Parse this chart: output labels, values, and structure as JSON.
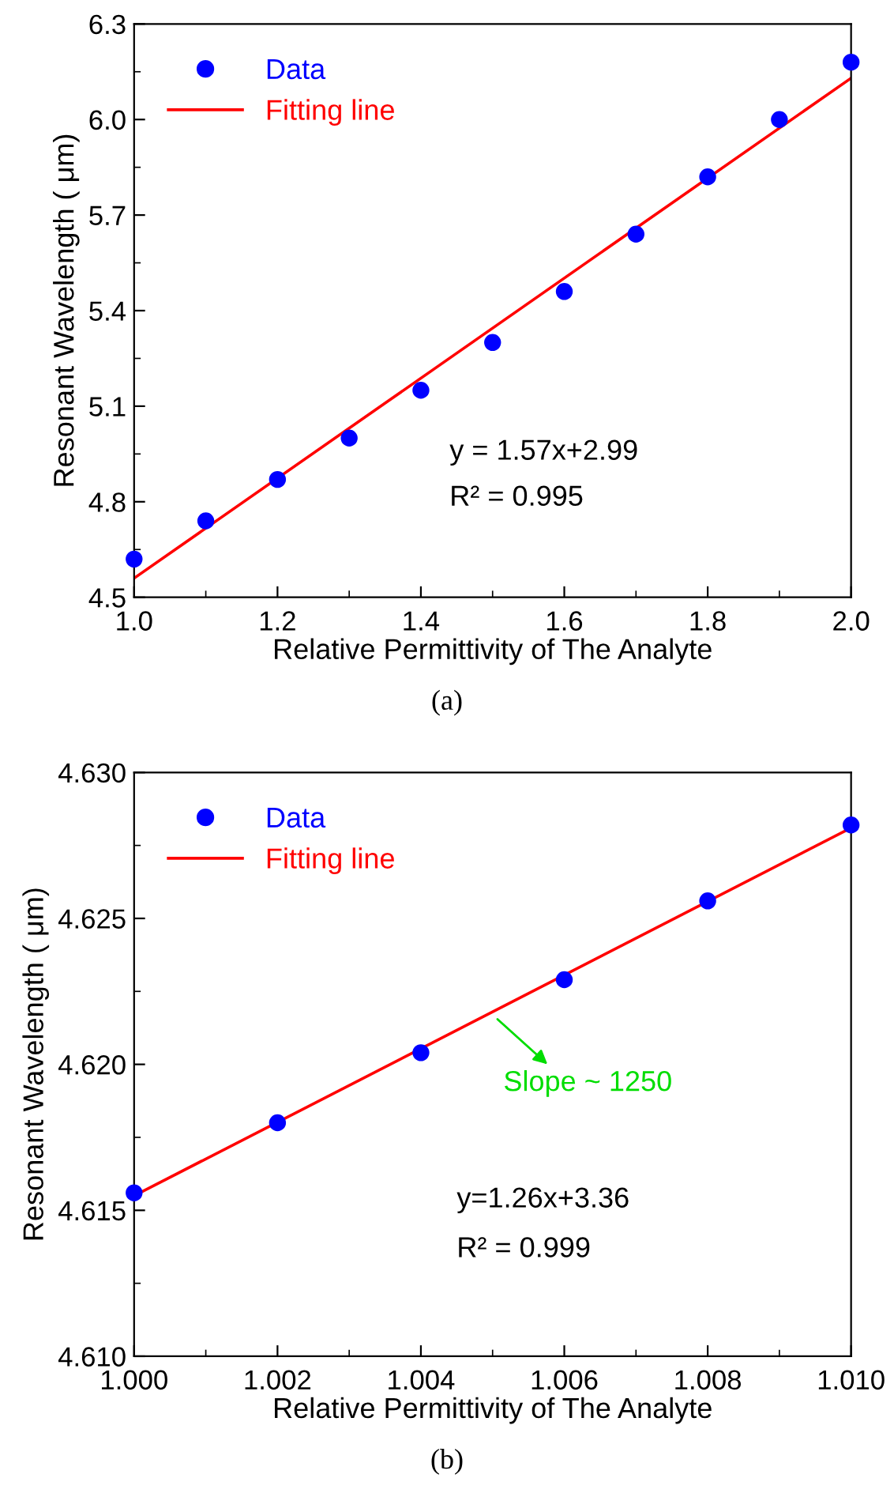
{
  "chart_data": [
    {
      "type": "scatter",
      "xlabel": "Relative Permittivity of The Analyte",
      "ylabel": "Resonant Wavelength ( μm)",
      "x": [
        1.0,
        1.1,
        1.2,
        1.3,
        1.4,
        1.5,
        1.6,
        1.7,
        1.8,
        1.9,
        2.0
      ],
      "series": [
        {
          "name": "Data",
          "color": "#0000ff",
          "marker": "circle",
          "values": [
            4.62,
            4.74,
            4.87,
            5.0,
            5.15,
            5.3,
            5.46,
            5.64,
            5.82,
            6.0,
            6.18
          ]
        },
        {
          "name": "Fitting line",
          "type": "line",
          "color": "#ff0000",
          "x": [
            1.0,
            2.0
          ],
          "values": [
            4.56,
            6.13
          ]
        }
      ],
      "xlim": [
        1.0,
        2.0
      ],
      "xticks": [
        {
          "value": 1.0,
          "label": "1.0"
        },
        1.2,
        1.4,
        1.6,
        1.8,
        {
          "value": 2.0,
          "label": "2.0"
        }
      ],
      "ylim": [
        4.5,
        6.3
      ],
      "yticks": [
        4.5,
        4.8,
        5.1,
        5.4,
        5.7,
        {
          "value": 6.0,
          "label": "6.0"
        },
        6.3
      ],
      "legend": "top left",
      "grid": false,
      "annotations": [
        "y = 1.57x+2.99",
        "R² = 0.995",
        "(a)"
      ]
    },
    {
      "type": "scatter",
      "xlabel": "Relative Permittivity of The Analyte",
      "ylabel": "Resonant Wavelength ( μm)",
      "x": [
        1.0,
        1.002,
        1.004,
        1.006,
        1.008,
        1.01
      ],
      "series": [
        {
          "name": "Data",
          "color": "#0000ff",
          "marker": "circle",
          "values": [
            4.6156,
            4.618,
            4.6204,
            4.6229,
            4.6256,
            4.6282
          ]
        },
        {
          "name": "Fitting line",
          "type": "line",
          "color": "#ff0000",
          "x": [
            1.0,
            1.01
          ],
          "values": [
            4.6155,
            4.6281
          ]
        }
      ],
      "xlim": [
        1.0,
        1.01
      ],
      "xticks": [
        {
          "value": 1.0,
          "label": "1.000"
        },
        1.002,
        1.004,
        1.006,
        1.008,
        {
          "value": 1.01,
          "label": "1.010"
        }
      ],
      "ylim": [
        4.61,
        4.63
      ],
      "yticks": [
        {
          "value": 4.61,
          "label": "4.610"
        },
        4.615,
        {
          "value": 4.62,
          "label": "4.620"
        },
        4.625,
        {
          "value": 4.63,
          "label": "4.630"
        }
      ],
      "legend": "top left",
      "grid": false,
      "annotations": [
        {
          "text": "Slope ~ 1250",
          "x": 1.005,
          "y": 4.6217
        },
        "y=1.26x+3.36",
        "R² = 0.999",
        "(b)"
      ]
    }
  ]
}
